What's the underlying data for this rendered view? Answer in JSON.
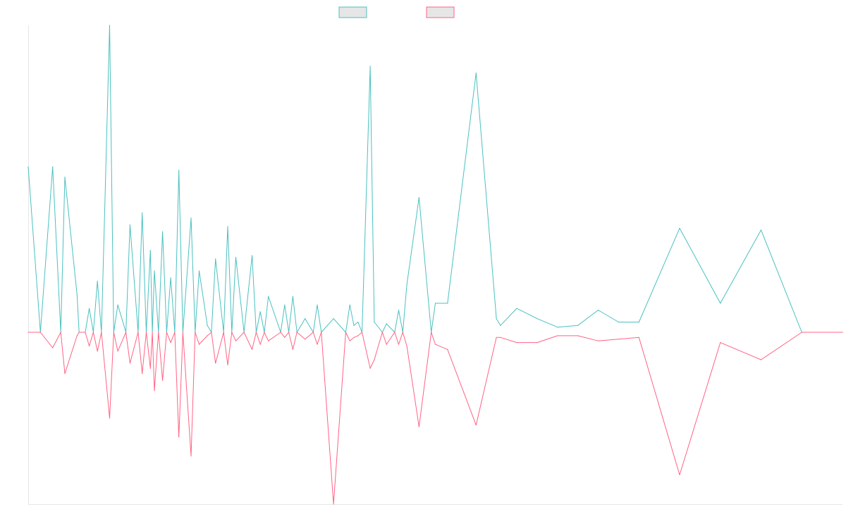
{
  "chart_data": {
    "type": "line",
    "title": "",
    "xlabel": "",
    "ylabel": "",
    "ylim": [
      -1,
      1
    ],
    "grid": false,
    "legend": "top-center",
    "colors": {
      "series_a": "#4bc0c0",
      "series_b": "#ff6384",
      "fill": "#e6e6e6"
    },
    "x": [
      0,
      3,
      6,
      8,
      9,
      12,
      12.5,
      14,
      15,
      16,
      17,
      18,
      20,
      21,
      22,
      24,
      25,
      27,
      28,
      29,
      30,
      30.5,
      31,
      32,
      33,
      34,
      35,
      36,
      37,
      38,
      40,
      41,
      42,
      44,
      45,
      46,
      48,
      49,
      50,
      51,
      53,
      55,
      56,
      57,
      58,
      59,
      62,
      63,
      64,
      65,
      66,
      68,
      70,
      71,
      72,
      75,
      78,
      79,
      80,
      81,
      82,
      84,
      85,
      87,
      88,
      90,
      91,
      92,
      93,
      96,
      99,
      100,
      103,
      110,
      115,
      116,
      120,
      125,
      130,
      135,
      140,
      145,
      150,
      160,
      170,
      180,
      190,
      200
    ],
    "series": [
      {
        "name": "",
        "values": [
          0.97,
          0,
          0.97,
          0,
          0.91,
          0.22,
          0,
          0,
          0.14,
          0,
          0.3,
          0,
          1.8,
          0,
          0.16,
          0,
          0.63,
          0,
          0.7,
          0,
          0.48,
          0,
          0.36,
          0,
          0.59,
          0,
          0.32,
          0,
          0.95,
          0,
          0.67,
          0,
          0.36,
          0.04,
          0,
          0.43,
          0,
          0.62,
          0,
          0.44,
          0,
          0.45,
          0,
          0.12,
          0,
          0.21,
          0,
          0.16,
          0,
          0.21,
          0,
          0.08,
          0,
          0.16,
          0,
          0.08,
          0,
          0.16,
          0.04,
          0.06,
          0,
          1.56,
          0.06,
          0,
          0.05,
          0,
          0.13,
          0,
          0.28,
          0.79,
          0,
          0.17,
          0.17,
          1.52,
          0.08,
          0.04,
          0.14,
          0.08,
          0.03,
          0.04,
          0.13,
          0.06,
          0.06,
          0.61,
          0.17,
          0.6,
          0,
          0
        ]
      },
      {
        "name": "",
        "values": [
          0,
          0,
          -0.09,
          0,
          -0.24,
          -0.02,
          0,
          0,
          -0.08,
          0,
          -0.11,
          0,
          -0.5,
          0,
          -0.11,
          0,
          -0.18,
          0,
          -0.24,
          0,
          -0.21,
          0,
          -0.34,
          0,
          -0.28,
          0,
          -0.06,
          0,
          -0.61,
          0,
          -0.72,
          0,
          -0.07,
          -0.02,
          0,
          -0.18,
          0,
          -0.19,
          0,
          -0.05,
          0,
          -0.1,
          0,
          -0.07,
          0,
          -0.05,
          0,
          -0.03,
          0,
          -0.1,
          0,
          -0.04,
          0,
          -0.07,
          0,
          -1.0,
          0,
          -0.05,
          -0.03,
          -0.02,
          0,
          -0.21,
          -0.16,
          0,
          -0.07,
          0,
          -0.07,
          0,
          -0.08,
          -0.55,
          0,
          -0.07,
          -0.1,
          -0.54,
          -0.03,
          -0.03,
          -0.06,
          -0.06,
          -0.02,
          -0.02,
          -0.05,
          -0.04,
          -0.03,
          -0.83,
          -0.06,
          -0.16,
          0,
          0
        ]
      }
    ]
  }
}
